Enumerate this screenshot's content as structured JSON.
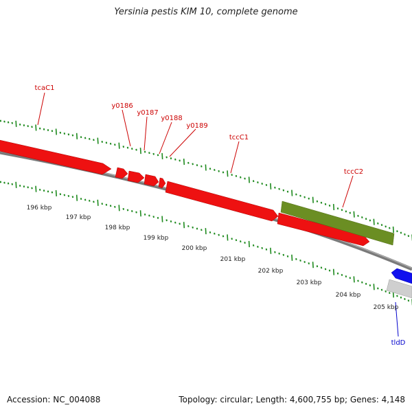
{
  "title": "Yersinia pestis KIM 10, complete genome",
  "footer": {
    "accession": "Accession: NC_004088",
    "summary": "Topology: circular; Length: 4,600,755 bp; Genes: 4,148"
  },
  "colors": {
    "gene_red": "#ee1111",
    "gene_green": "#6b8e23",
    "gene_blue": "#1010ee",
    "gene_grey": "#cfcfcf",
    "backbone": "#777777",
    "ticks": "#1e8a1e",
    "label_red": "#cc0000",
    "label_blue": "#0000cc"
  },
  "scale_labels": [
    "196 kbp",
    "197 kbp",
    "198 kbp",
    "199 kbp",
    "200 kbp",
    "201 kbp",
    "202 kbp",
    "203 kbp",
    "204 kbp",
    "205 kbp"
  ],
  "gene_labels": [
    {
      "name": "tcaC1",
      "strand": "forward"
    },
    {
      "name": "y0186",
      "strand": "forward"
    },
    {
      "name": "y0187",
      "strand": "forward"
    },
    {
      "name": "y0188",
      "strand": "forward"
    },
    {
      "name": "y0189",
      "strand": "forward"
    },
    {
      "name": "tccC1",
      "strand": "forward"
    },
    {
      "name": "tccC2",
      "strand": "forward"
    },
    {
      "name": "tldD",
      "strand": "reverse"
    }
  ]
}
